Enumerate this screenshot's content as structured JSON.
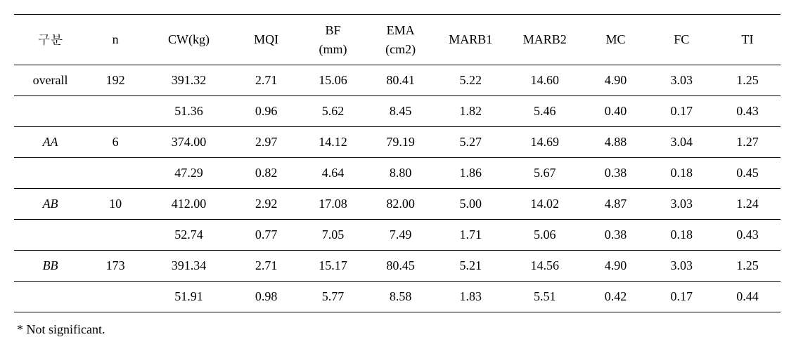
{
  "headers": {
    "gubun": "구분",
    "n": "n",
    "cw": "CW(kg)",
    "mqi": "MQI",
    "bf_top": "BF",
    "bf_bot": "(mm)",
    "ema_top": "EMA",
    "ema_bot": "(cm2)",
    "marb1": "MARB1",
    "marb2": "MARB2",
    "mc": "MC",
    "fc": "FC",
    "ti": "TI"
  },
  "rows": [
    {
      "label": "overall",
      "italic": false,
      "n": "192",
      "main": {
        "cw": "391.32",
        "mqi": "2.71",
        "bf": "15.06",
        "ema": "80.41",
        "marb1": "5.22",
        "marb2": "14.60",
        "mc": "4.90",
        "fc": "3.03",
        "ti": "1.25"
      },
      "sub": {
        "cw": "51.36",
        "mqi": "0.96",
        "bf": "5.62",
        "ema": "8.45",
        "marb1": "1.82",
        "marb2": "5.46",
        "mc": "0.40",
        "fc": "0.17",
        "ti": "0.43"
      }
    },
    {
      "label": "AA",
      "italic": true,
      "n": "6",
      "main": {
        "cw": "374.00",
        "mqi": "2.97",
        "bf": "14.12",
        "ema": "79.19",
        "marb1": "5.27",
        "marb2": "14.69",
        "mc": "4.88",
        "fc": "3.04",
        "ti": "1.27"
      },
      "sub": {
        "cw": "47.29",
        "mqi": "0.82",
        "bf": "4.64",
        "ema": "8.80",
        "marb1": "1.86",
        "marb2": "5.67",
        "mc": "0.38",
        "fc": "0.18",
        "ti": "0.45"
      }
    },
    {
      "label": "AB",
      "italic": true,
      "n": "10",
      "main": {
        "cw": "412.00",
        "mqi": "2.92",
        "bf": "17.08",
        "ema": "82.00",
        "marb1": "5.00",
        "marb2": "14.02",
        "mc": "4.87",
        "fc": "3.03",
        "ti": "1.24"
      },
      "sub": {
        "cw": "52.74",
        "mqi": "0.77",
        "bf": "7.05",
        "ema": "7.49",
        "marb1": "1.71",
        "marb2": "5.06",
        "mc": "0.38",
        "fc": "0.18",
        "ti": "0.43"
      }
    },
    {
      "label": "BB",
      "italic": true,
      "n": "173",
      "main": {
        "cw": "391.34",
        "mqi": "2.71",
        "bf": "15.17",
        "ema": "80.45",
        "marb1": "5.21",
        "marb2": "14.56",
        "mc": "4.90",
        "fc": "3.03",
        "ti": "1.25"
      },
      "sub": {
        "cw": "51.91",
        "mqi": "0.98",
        "bf": "5.77",
        "ema": "8.58",
        "marb1": "1.83",
        "marb2": "5.51",
        "mc": "0.42",
        "fc": "0.17",
        "ti": "0.44"
      }
    }
  ],
  "footnote": "* Not significant."
}
